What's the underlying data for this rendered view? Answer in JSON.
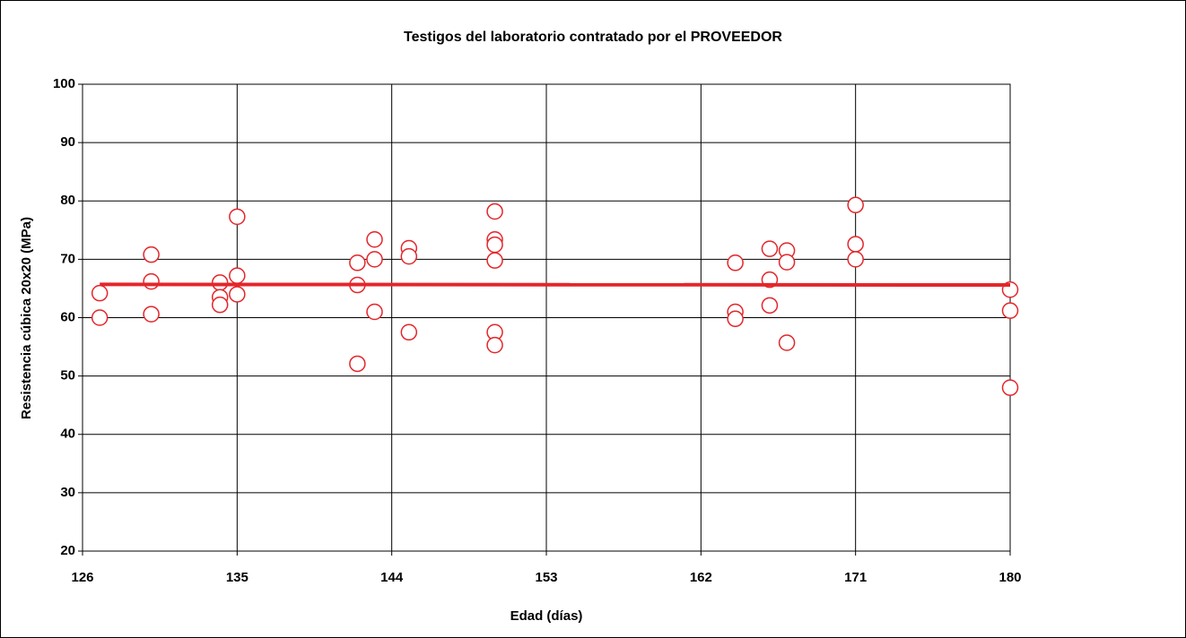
{
  "chart_data": {
    "type": "scatter",
    "title": "Testigos del laboratorio contratado por el PROVEEDOR",
    "xlabel": "Edad (días)",
    "ylabel": "Resistencia cúbica 20x20 (MPa)",
    "xlim": [
      126,
      180
    ],
    "ylim": [
      20,
      100
    ],
    "xticks": [
      126,
      135,
      144,
      153,
      162,
      171,
      180
    ],
    "yticks": [
      20,
      30,
      40,
      50,
      60,
      70,
      80,
      90,
      100
    ],
    "grid": true,
    "series": [
      {
        "type": "scatter",
        "color": "#e3262b",
        "x": [
          127,
          127,
          130,
          130,
          130,
          134,
          134,
          134,
          135,
          135,
          135,
          142,
          142,
          142,
          143,
          143,
          143,
          145,
          145,
          145,
          150,
          150,
          150,
          150,
          150,
          150,
          164,
          164,
          164,
          166,
          166,
          166,
          167,
          167,
          167,
          171,
          171,
          171,
          180,
          180,
          180
        ],
        "values": [
          64.2,
          60.0,
          70.8,
          66.2,
          60.6,
          66.0,
          63.5,
          62.2,
          77.3,
          67.2,
          64.0,
          69.4,
          65.6,
          52.1,
          73.4,
          70.0,
          61.0,
          71.9,
          70.5,
          57.5,
          78.2,
          73.4,
          72.5,
          69.8,
          57.5,
          55.3,
          69.4,
          61.0,
          59.8,
          71.8,
          66.5,
          62.1,
          71.5,
          69.5,
          55.7,
          79.3,
          72.6,
          70.0,
          64.8,
          61.2,
          48.0
        ]
      },
      {
        "type": "line",
        "color": "#e3262b",
        "x": [
          127,
          180
        ],
        "values": [
          65.7,
          65.6
        ]
      }
    ]
  }
}
